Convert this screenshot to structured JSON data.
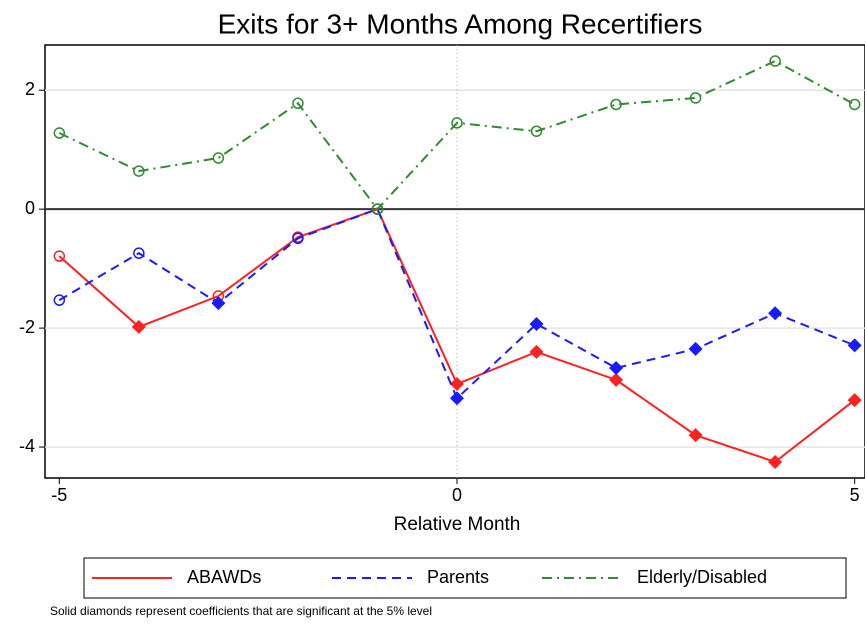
{
  "chart_data": {
    "type": "line",
    "title": "Exits for 3+ Months Among Recertifiers",
    "x_label": "Relative Month",
    "note": "Solid diamonds represent coefficients that are significant at the 5% level",
    "x": [
      -5,
      -4,
      -3,
      -2,
      -1,
      0,
      1,
      2,
      3,
      4,
      5
    ],
    "series": [
      {
        "name": "ABAWDs",
        "color": "#ff2020",
        "dash": "solid",
        "values": [
          -0.79,
          -1.98,
          -1.46,
          -0.47,
          0,
          -2.94,
          -2.4,
          -2.87,
          -3.8,
          -4.25,
          -3.21
        ],
        "significant": [
          false,
          true,
          false,
          false,
          false,
          true,
          true,
          true,
          true,
          true,
          true
        ]
      },
      {
        "name": "Parents",
        "color": "#1a1aff",
        "dash": "dash",
        "values": [
          -1.53,
          -0.74,
          -1.58,
          -0.49,
          0,
          -3.18,
          -1.93,
          -2.67,
          -2.35,
          -1.75,
          -2.29
        ],
        "significant": [
          false,
          false,
          true,
          false,
          false,
          true,
          true,
          true,
          true,
          true,
          true
        ]
      },
      {
        "name": "Elderly/Disabled",
        "color": "#2e8b2e",
        "dash": "dashdot",
        "values": [
          1.28,
          0.64,
          0.86,
          1.78,
          0,
          1.45,
          1.31,
          1.76,
          1.87,
          2.49,
          1.76
        ],
        "significant": [
          false,
          false,
          false,
          false,
          false,
          false,
          false,
          false,
          false,
          false,
          false
        ]
      }
    ],
    "xlim": [
      -5.18,
      5.13
    ],
    "ylim": [
      -4.52,
      2.76
    ],
    "xticks": [
      -5,
      0,
      5
    ],
    "yticks": [
      -4,
      -2,
      0,
      2
    ],
    "grid": true,
    "reference_lines": {
      "x": 0,
      "y": 0
    },
    "legend": "bottom"
  }
}
